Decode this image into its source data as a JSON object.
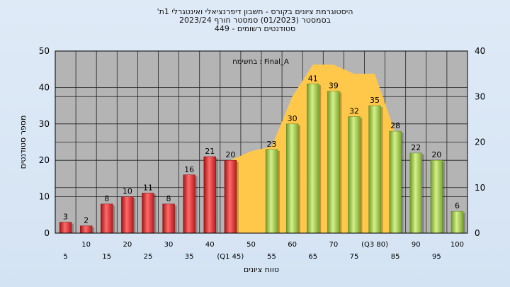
{
  "header": {
    "line1": "'היסטוגרמת ציונים בקורס - חשבון דיפרנציאלי ואינטגרלי 1ת",
    "line2": "בסמסטר  (01/2023)  סמסטר חורף  2023/24",
    "line3": "סטודנטים רשומים - 449"
  },
  "chart_data": {
    "type": "bar",
    "title": "'היסטוגרמת ציונים בקורס - חשבון דיפרנציאלי ואינטגרלי 1ת",
    "subtitle": "בסמסטר  (01/2023)  סמסטר חורף  2023/24 | סטודנטים רשומים - 449",
    "annotation": "בחשימח : Final_A",
    "xlabel": "טווח ציונים",
    "ylabel": "מספר סטודנטים",
    "ylim": [
      0,
      50
    ],
    "y2lim": [
      0,
      40
    ],
    "y_ticks": [
      0,
      10,
      20,
      30,
      40,
      50
    ],
    "y2_ticks": [
      0,
      10,
      20,
      30,
      40
    ],
    "categories": [
      "5",
      "10",
      "15",
      "20",
      "25",
      "30",
      "35",
      "40",
      "(Q1 45)",
      "50",
      "55",
      "60",
      "65",
      "70",
      "75",
      "(Q3 80)",
      "85",
      "90",
      "95",
      "100"
    ],
    "values": [
      3,
      2,
      8,
      10,
      11,
      8,
      16,
      21,
      20,
      null,
      23,
      30,
      41,
      39,
      32,
      35,
      28,
      22,
      20,
      6
    ],
    "bar_groups": [
      "low",
      "low",
      "low",
      "low",
      "low",
      "low",
      "low",
      "low",
      "low",
      null,
      "high",
      "high",
      "high",
      "high",
      "high",
      "high",
      "high",
      "high",
      "high",
      "high"
    ],
    "area_series": {
      "name": "",
      "x": [
        "(Q1 45)",
        "50",
        "55",
        "60",
        "65",
        "70",
        "75",
        "(Q3 80)",
        "85"
      ],
      "values": [
        16,
        18,
        19,
        30,
        37,
        37,
        35,
        35,
        22
      ]
    },
    "colors": {
      "low": "#e0262a",
      "high": "#8dbf3c",
      "area": "#ffc84a",
      "plot_bg": "#b4b4b4",
      "grid": "#000000"
    },
    "grid": true
  }
}
